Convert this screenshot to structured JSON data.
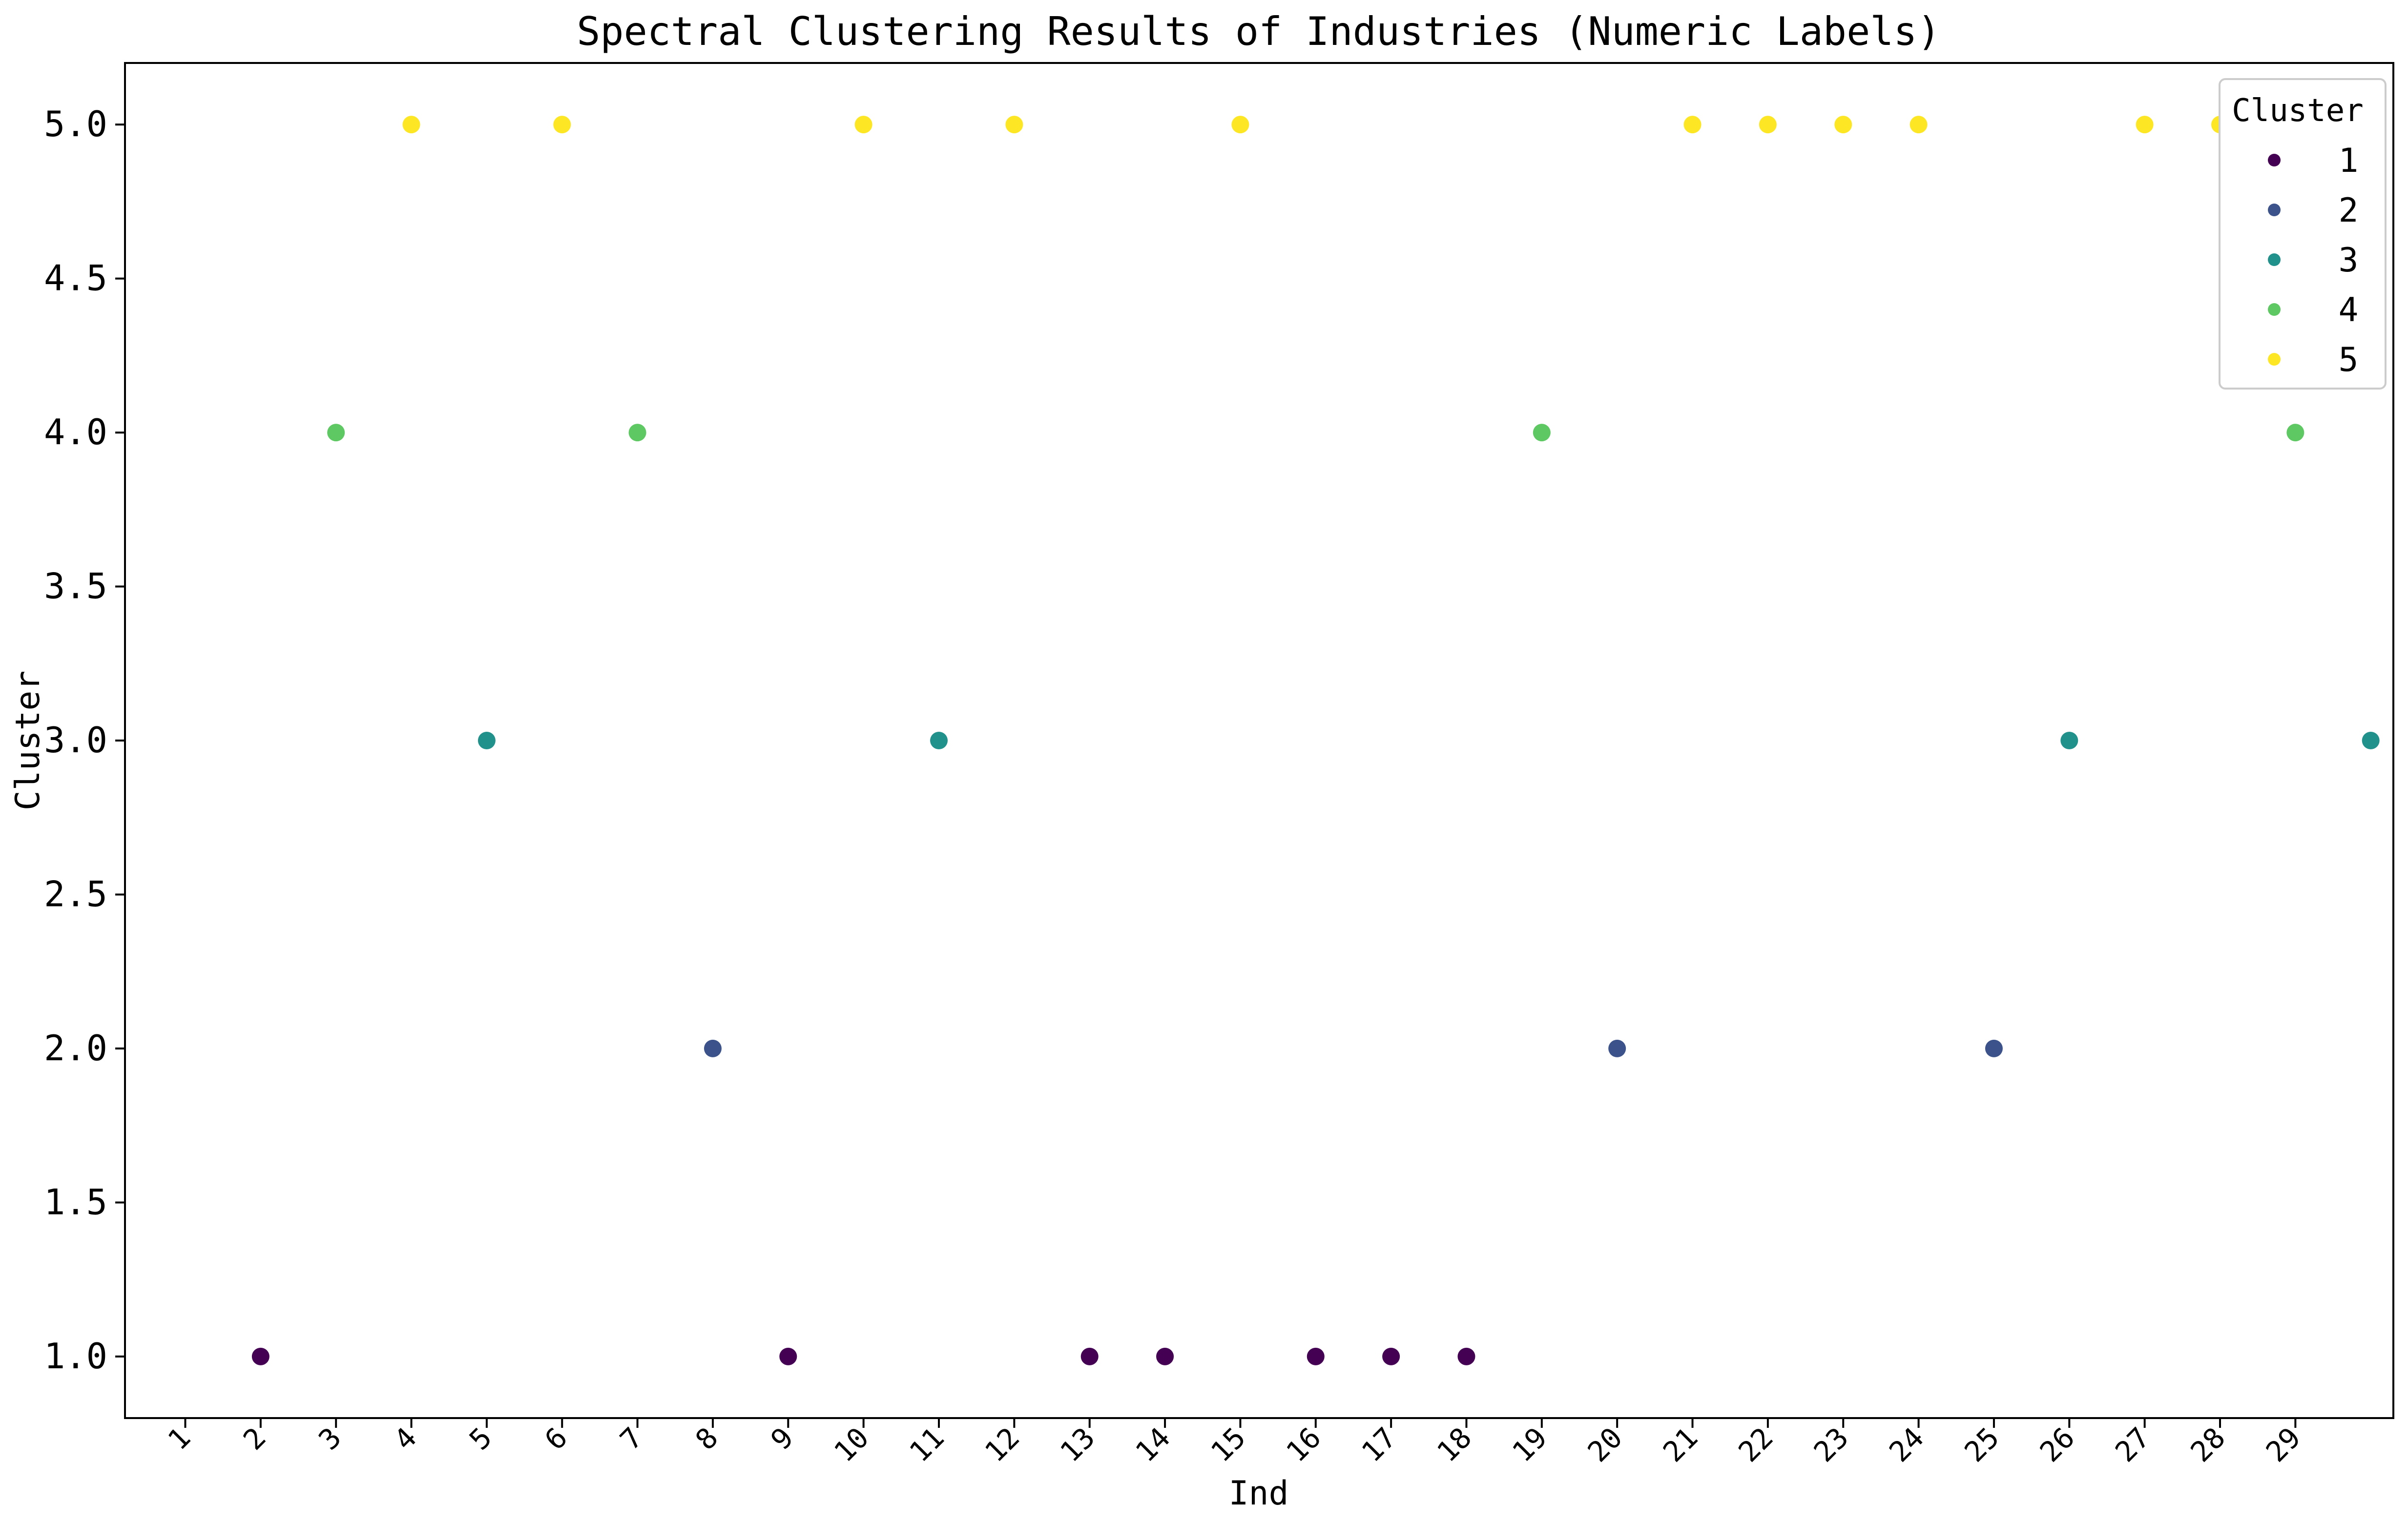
{
  "chart_data": {
    "type": "scatter",
    "title": "Spectral Clustering Results of Industries (Numeric Labels)",
    "xlabel": "Ind",
    "ylabel": "Cluster",
    "xlim": [
      0.2,
      30.3
    ],
    "ylim": [
      0.8,
      5.2
    ],
    "x_tick_labels": [
      "1",
      "2",
      "3",
      "4",
      "5",
      "6",
      "7",
      "8",
      "9",
      "10",
      "11",
      "12",
      "13",
      "14",
      "15",
      "16",
      "17",
      "18",
      "19",
      "20",
      "21",
      "22",
      "23",
      "24",
      "25",
      "26",
      "27",
      "28",
      "29"
    ],
    "y_ticks": [
      1.0,
      1.5,
      2.0,
      2.5,
      3.0,
      3.5,
      4.0,
      4.5,
      5.0
    ],
    "y_tick_labels": [
      "1.0",
      "1.5",
      "2.0",
      "2.5",
      "3.0",
      "3.5",
      "4.0",
      "4.5",
      "5.0"
    ],
    "points": [
      {
        "x": 2,
        "y": 1
      },
      {
        "x": 3,
        "y": 4
      },
      {
        "x": 4,
        "y": 5
      },
      {
        "x": 5,
        "y": 3
      },
      {
        "x": 6,
        "y": 5
      },
      {
        "x": 7,
        "y": 4
      },
      {
        "x": 8,
        "y": 2
      },
      {
        "x": 9,
        "y": 1
      },
      {
        "x": 10,
        "y": 5
      },
      {
        "x": 11,
        "y": 3
      },
      {
        "x": 12,
        "y": 5
      },
      {
        "x": 13,
        "y": 1
      },
      {
        "x": 14,
        "y": 1
      },
      {
        "x": 15,
        "y": 5
      },
      {
        "x": 16,
        "y": 1
      },
      {
        "x": 17,
        "y": 1
      },
      {
        "x": 18,
        "y": 1
      },
      {
        "x": 19,
        "y": 4
      },
      {
        "x": 20,
        "y": 2
      },
      {
        "x": 21,
        "y": 5
      },
      {
        "x": 22,
        "y": 5
      },
      {
        "x": 23,
        "y": 5
      },
      {
        "x": 24,
        "y": 5
      },
      {
        "x": 25,
        "y": 2
      },
      {
        "x": 26,
        "y": 3
      },
      {
        "x": 27,
        "y": 5
      },
      {
        "x": 28,
        "y": 5
      },
      {
        "x": 29,
        "y": 4
      },
      {
        "x": 30,
        "y": 3
      }
    ],
    "cluster_colors": {
      "1": "#440154",
      "2": "#3b528b",
      "3": "#21918c",
      "4": "#5ec962",
      "5": "#fde725"
    },
    "legend": {
      "title": "Cluster",
      "placement": "top-right",
      "entries": [
        {
          "label": "1",
          "cluster": 1
        },
        {
          "label": "2",
          "cluster": 2
        },
        {
          "label": "3",
          "cluster": 3
        },
        {
          "label": "4",
          "cluster": 4
        },
        {
          "label": "5",
          "cluster": 5
        }
      ]
    },
    "grid": false
  }
}
